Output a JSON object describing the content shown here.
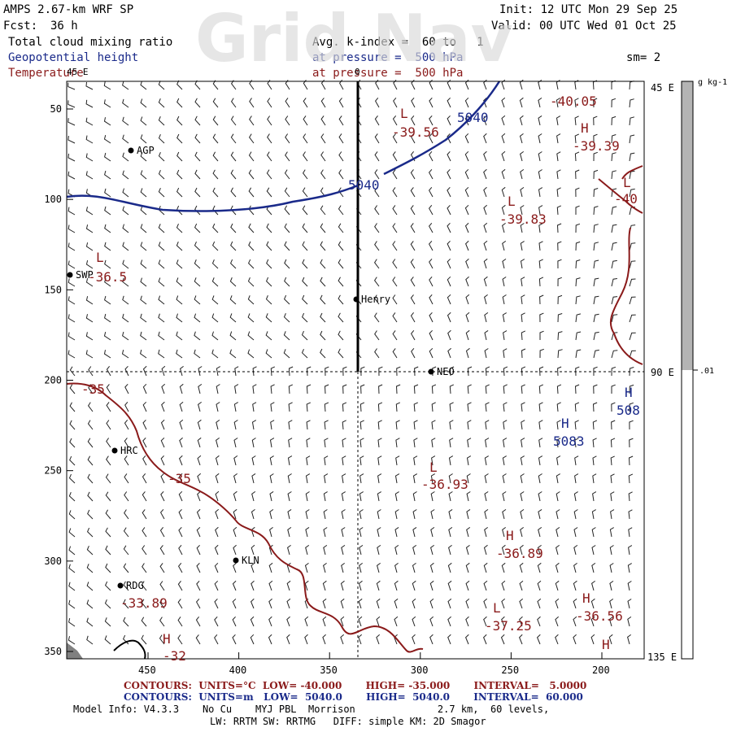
{
  "header": {
    "model": "AMPS 2.67-km WRF SP",
    "init": "Init: 12 UTC Mon 29 Sep 25",
    "fcst_label": "Fcst:",
    "fcst_value": "36 h",
    "valid": "Valid: 00 UTC Wed 01 Oct 25",
    "field1": "Total cloud mixing ratio",
    "field1_info": "Avg. k-index =  60 to   1",
    "field2": "Geopotential height",
    "field2_info": "at pressure =  500 hPa",
    "smoothing": "sm= 2",
    "field3": "Temperature",
    "field3_info": "at pressure =  500 hPa"
  },
  "watermark": "Grid Nav",
  "colorbar": {
    "units": "g kg-1",
    "tick_top": "45 E",
    "tick_mid": "90 E",
    "tick_bottom": "135 E",
    "value_label": ".01"
  },
  "axes": {
    "x_ticks": [
      "450",
      "400",
      "350",
      "300",
      "250",
      "200"
    ],
    "y_ticks": [
      "50",
      "100",
      "150",
      "200",
      "250",
      "300",
      "350"
    ],
    "top_small_labels": [
      "45 E",
      "0"
    ]
  },
  "stations": [
    {
      "label": "AGP"
    },
    {
      "label": "SWP"
    },
    {
      "label": "Henry"
    },
    {
      "label": "NEO"
    },
    {
      "label": "HRC"
    },
    {
      "label": "KLN"
    },
    {
      "label": "RDG"
    }
  ],
  "height_contours": [
    {
      "label": "5040"
    },
    {
      "label": "5040"
    }
  ],
  "extrema": [
    {
      "type": "L",
      "value": "-39.56"
    },
    {
      "type": "",
      "value": "-40.05"
    },
    {
      "type": "H",
      "value": "-39.39"
    },
    {
      "type": "L",
      "value": "-40"
    },
    {
      "type": "L",
      "value": "-39.83"
    },
    {
      "type": "L",
      "value": "-36.5"
    },
    {
      "type": "",
      "value": "-35"
    },
    {
      "type": "",
      "value": "-35"
    },
    {
      "type": "L",
      "value": "-36.93"
    },
    {
      "type": "H",
      "value": "-36.89"
    },
    {
      "type": "",
      "value": "-33.89"
    },
    {
      "type": "L",
      "value": "-37.25"
    },
    {
      "type": "H",
      "value": "-36.56"
    },
    {
      "type": "H",
      "value": ""
    },
    {
      "type": "H",
      "value": "-32"
    },
    {
      "type": "H",
      "value": "508"
    },
    {
      "type": "H",
      "value": "5083"
    }
  ],
  "footer": {
    "temp_contours": "CONTOURS:  UNITS=°C  LOW= -40.000       HIGH= -35.000       INTERVAL=   5.0000",
    "height_contours": "CONTOURS:  UNITS=m   LOW=  5040.0       HIGH=  5040.0       INTERVAL=  60.000",
    "model_info": "Model Info: V4.3.3    No Cu    MYJ PBL  Morrison              2.7 km,  60 levels,",
    "physics": "LW: RRTM SW: RRTMG   DIFF: simple KM: 2D Smagor"
  },
  "colors": {
    "temperature": "#8a1a1a",
    "height": "#1a2a8a",
    "cloud_bar": "#b4b4b4",
    "frame": "#000000"
  }
}
